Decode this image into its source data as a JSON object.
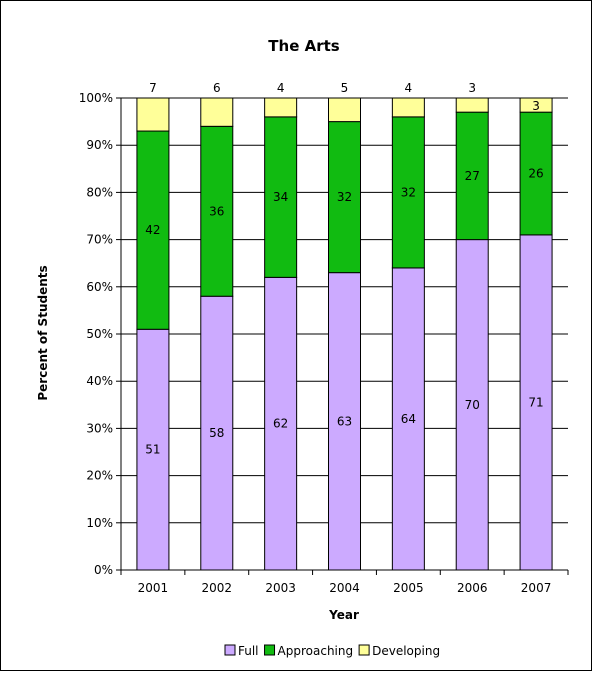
{
  "chart_data": {
    "type": "bar",
    "stacked": true,
    "title": "The Arts",
    "xlabel": "Year",
    "ylabel": "Percent of Students",
    "categories": [
      "2001",
      "2002",
      "2003",
      "2004",
      "2005",
      "2006",
      "2007"
    ],
    "series": [
      {
        "name": "Full",
        "color": "#ccaaff",
        "values": [
          51,
          58,
          62,
          63,
          64,
          70,
          71
        ]
      },
      {
        "name": "Approaching",
        "color": "#11bb11",
        "values": [
          42,
          36,
          34,
          32,
          32,
          27,
          26
        ]
      },
      {
        "name": "Developing",
        "color": "#ffff99",
        "values": [
          7,
          6,
          4,
          5,
          4,
          3,
          3
        ]
      }
    ],
    "ylim": [
      0,
      100
    ],
    "yticks": [
      "0%",
      "10%",
      "20%",
      "30%",
      "40%",
      "50%",
      "60%",
      "70%",
      "80%",
      "90%",
      "100%"
    ],
    "grid": true,
    "legend_position": "bottom"
  }
}
